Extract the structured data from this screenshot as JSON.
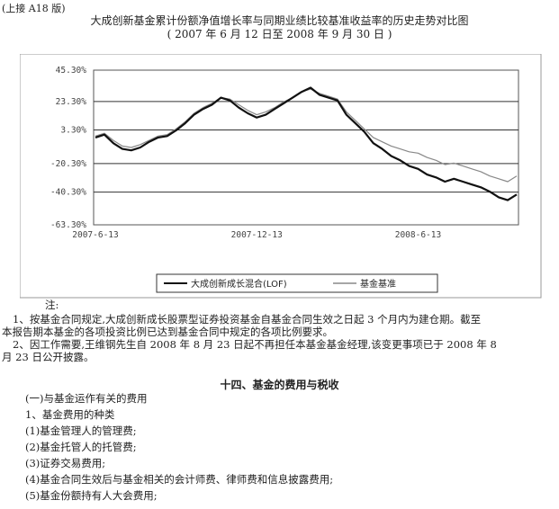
{
  "header": {
    "continuation": "(上接 A18 版)",
    "title": "大成创新基金累计份额净值增长率与同期业绩比较基准收益率的历史走势对比图",
    "subtitle": "( 2007 年 6 月 12 日至 2008 年 9 月 30 日 )"
  },
  "chart_data": {
    "type": "line",
    "ylim": [
      -63.3,
      45.3
    ],
    "y_ticks": [
      "45.30%",
      "23.30%",
      "3.30%",
      "-20.30%",
      "-40.30%",
      "-63.30%"
    ],
    "x_ticks": [
      "2007-6-13",
      "2007-12-13",
      "2008-6-13"
    ],
    "grid": true,
    "legend_position": "bottom",
    "colors": {
      "fund": "#111111",
      "benchmark": "#888888"
    },
    "series": [
      {
        "name": "大成创新成长混合(LOF)",
        "values": [
          -2,
          0,
          -6,
          -10,
          -11,
          -9,
          -5,
          -2,
          -1,
          3,
          8,
          14,
          18,
          21,
          26,
          24,
          19,
          15,
          12,
          14,
          18,
          22,
          26,
          30,
          33,
          28,
          26,
          24,
          14,
          8,
          2,
          -6,
          -10,
          -15,
          -18,
          -22,
          -24,
          -28,
          -30,
          -33,
          -31,
          -33,
          -35,
          -37,
          -40,
          -44,
          -46,
          -42
        ]
      },
      {
        "name": "基金基准",
        "values": [
          -1,
          1,
          -4,
          -8,
          -9,
          -7,
          -4,
          -1,
          0,
          4,
          9,
          15,
          19,
          22,
          26,
          25,
          21,
          17,
          14,
          16,
          19,
          23,
          26,
          30,
          32,
          29,
          27,
          25,
          16,
          10,
          4,
          -2,
          -5,
          -8,
          -10,
          -12,
          -13,
          -16,
          -18,
          -21,
          -20,
          -22,
          -24,
          -26,
          -29,
          -31,
          -33,
          -29
        ]
      }
    ]
  },
  "notes": {
    "label": "注:",
    "note1_line1": "1、按基金合同规定,大成创新成长股票型证券投资基金自基金合同生效之日起 3 个月内为建仓期。截至",
    "note1_line2": "本报告期本基金的各项投资比例已达到基金合同中规定的各项比例要求。",
    "note2_line1": "2、因工作需要,王维钢先生自 2008 年 8 月 23 日起不再担任本基金基金经理,该变更事项已于 2008 年 8",
    "note2_line2": "月 23 日公开披露。"
  },
  "section": {
    "heading": "十四、基金的费用与税收",
    "items": [
      "(一)与基金运作有关的费用",
      "1、基金费用的种类",
      "(1)基金管理人的管理费;",
      "(2)基金托管人的托管费;",
      "(3)证券交易费用;",
      "(4)基金合同生效后与基金相关的会计师费、律师费和信息披露费用;",
      "(5)基金份额持有人大会费用;"
    ]
  }
}
